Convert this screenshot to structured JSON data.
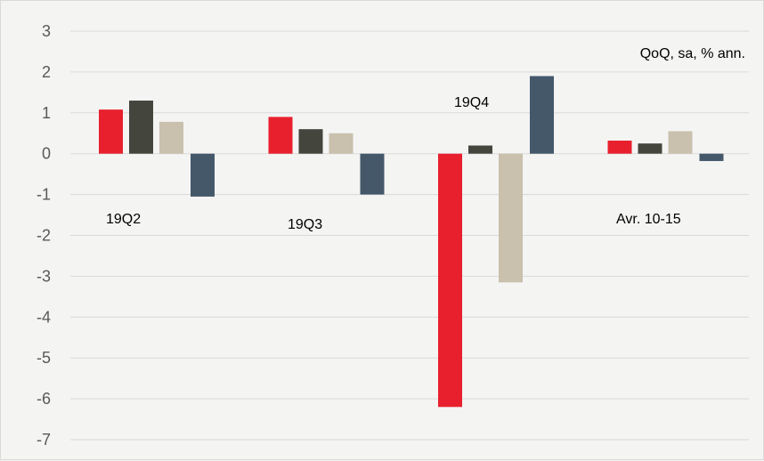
{
  "chart_data": {
    "type": "bar",
    "title": "",
    "xlabel": "",
    "ylabel": "",
    "unit_note": "QoQ, sa, % ann.",
    "ylim": [
      -7,
      3
    ],
    "yticks": [
      3,
      2,
      1,
      0,
      -1,
      -2,
      -3,
      -4,
      -5,
      -6,
      -7
    ],
    "grid": true,
    "legend": "none",
    "categories": [
      "19Q2",
      "19Q3",
      "19Q4",
      "Avr. 10-15"
    ],
    "series": [
      {
        "color": "#e8202d",
        "values": [
          1.08,
          0.9,
          -6.2,
          0.32
        ]
      },
      {
        "color": "#44463d",
        "values": [
          1.3,
          0.6,
          0.2,
          0.25
        ]
      },
      {
        "color": "#c9c0ad",
        "values": [
          0.78,
          0.5,
          -3.15,
          0.55
        ]
      },
      {
        "color": "#44586a",
        "values": [
          -1.05,
          -1.0,
          1.9,
          -0.18
        ]
      }
    ]
  }
}
